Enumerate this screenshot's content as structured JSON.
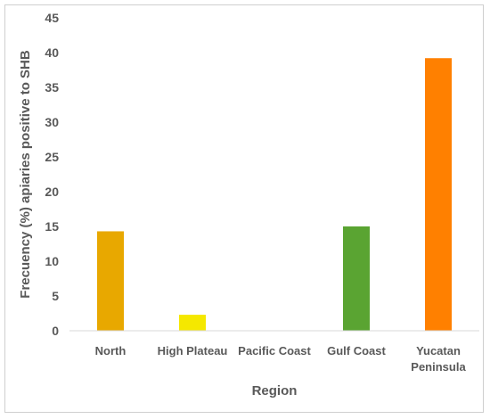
{
  "chart_data": {
    "type": "bar",
    "categories": [
      [
        "North"
      ],
      [
        "High Plateau"
      ],
      [
        "Pacific Coast"
      ],
      [
        "Gulf Coast"
      ],
      [
        "Yucatan",
        "Peninsula"
      ]
    ],
    "values": [
      14.3,
      2.3,
      0,
      15.0,
      39.2
    ],
    "colors": [
      "#E8A800",
      "#F5E800",
      "#BFBFBF",
      "#5AA432",
      "#FF8000"
    ],
    "xlabel": "Region",
    "ylabel": "Frecuency (%) apiaries positive to SHB",
    "ylim": [
      0,
      45
    ],
    "yticks": [
      0,
      5,
      10,
      15,
      20,
      25,
      30,
      35,
      40,
      45
    ],
    "grid": false,
    "legend": "none"
  }
}
